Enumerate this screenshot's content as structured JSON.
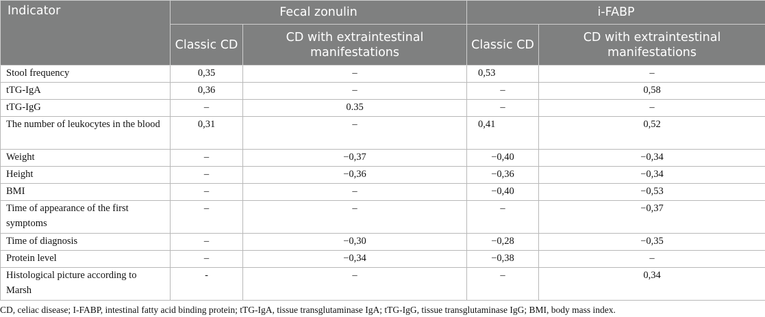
{
  "table": {
    "header": {
      "indicator": "Indicator",
      "group1": "Fecal zonulin",
      "group2": "i-FABP",
      "sub1": "Classic CD",
      "sub2": "CD with extraintestinal manifestations",
      "sub3": "Classic CD",
      "sub4": "CD with extraintestinal manifestations"
    },
    "rows": [
      {
        "label": "Stool frequency",
        "v": [
          "0,35",
          "–",
          "0,53",
          "–"
        ]
      },
      {
        "label": "tTG-IgA",
        "v": [
          "0,36",
          "–",
          "–",
          "0,58"
        ]
      },
      {
        "label": "tTG-IgG",
        "v": [
          "–",
          "0.35",
          "–",
          "–"
        ]
      },
      {
        "label": "The number of leukocytes in the blood",
        "v": [
          "0,31",
          "–",
          "0,41",
          "0,52"
        ]
      },
      {
        "label": "Weight",
        "v": [
          "–",
          "−0,37",
          "−0,40",
          "−0,34"
        ]
      },
      {
        "label": "Height",
        "v": [
          "–",
          "−0,36",
          "−0,36",
          "−0,34"
        ]
      },
      {
        "label": "BMI",
        "v": [
          "–",
          "–",
          "−0,40",
          "−0,53"
        ]
      },
      {
        "label": "Time of appearance of the first symptoms",
        "v": [
          "–",
          "–",
          "–",
          "−0,37"
        ]
      },
      {
        "label": "Time of diagnosis",
        "v": [
          "–",
          "−0,30",
          "−0,28",
          "−0,35"
        ]
      },
      {
        "label": "Protein level",
        "v": [
          "–",
          "−0,34",
          "−0,38",
          "–"
        ]
      },
      {
        "label": "Histological picture according to Marsh",
        "v": [
          "-",
          "–",
          "–",
          "0,34"
        ]
      }
    ]
  },
  "footnote": "CD, celiac disease; I-FABP, intestinal fatty acid binding protein; tTG-IgA, tissue transglutaminase IgA; tTG-IgG, tissue transglutaminase IgG; BMI, body mass index."
}
